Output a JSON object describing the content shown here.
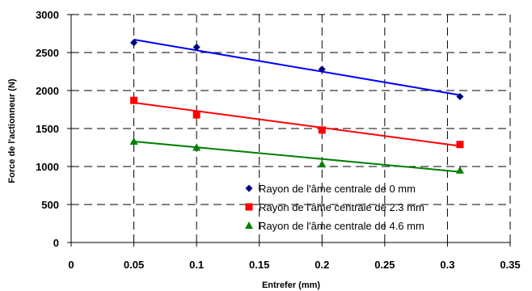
{
  "chart_data": {
    "type": "scatter",
    "xlabel": "Entrefer (mm)",
    "ylabel": "Force de l'actionneur (N)",
    "xlim": [
      0,
      0.35
    ],
    "ylim": [
      0,
      3000
    ],
    "x_ticks": [
      "0",
      "0.05",
      "0.1",
      "0.15",
      "0.2",
      "0.25",
      "0.3",
      "0.35"
    ],
    "y_ticks": [
      "0",
      "500",
      "1000",
      "1500",
      "2000",
      "2500",
      "3000"
    ],
    "grid": "dashed",
    "legend_position": "bottom-right",
    "series": [
      {
        "name": "Rayon de l'âme centrale de 0 mm",
        "color": "#000080",
        "line_color": "#0000ff",
        "marker": "diamond",
        "x": [
          0.05,
          0.1,
          0.2,
          0.31
        ],
        "y": [
          2630,
          2570,
          2280,
          1920
        ],
        "trend": [
          [
            0.05,
            2670
          ],
          [
            0.31,
            1940
          ]
        ]
      },
      {
        "name": "Rayon de l'âme centrale de  2.3 mm",
        "color": "#ff0000",
        "line_color": "#ff0000",
        "marker": "square",
        "x": [
          0.05,
          0.1,
          0.2,
          0.31
        ],
        "y": [
          1870,
          1680,
          1480,
          1290
        ],
        "trend": [
          [
            0.05,
            1840
          ],
          [
            0.31,
            1270
          ]
        ]
      },
      {
        "name": "Rayon de l'âme centrale de  4.6 mm",
        "color": "#008000",
        "line_color": "#008000",
        "marker": "triangle",
        "x": [
          0.05,
          0.1,
          0.2,
          0.31
        ],
        "y": [
          1330,
          1250,
          1030,
          950
        ],
        "trend": [
          [
            0.05,
            1330
          ],
          [
            0.31,
            930
          ]
        ]
      }
    ]
  }
}
